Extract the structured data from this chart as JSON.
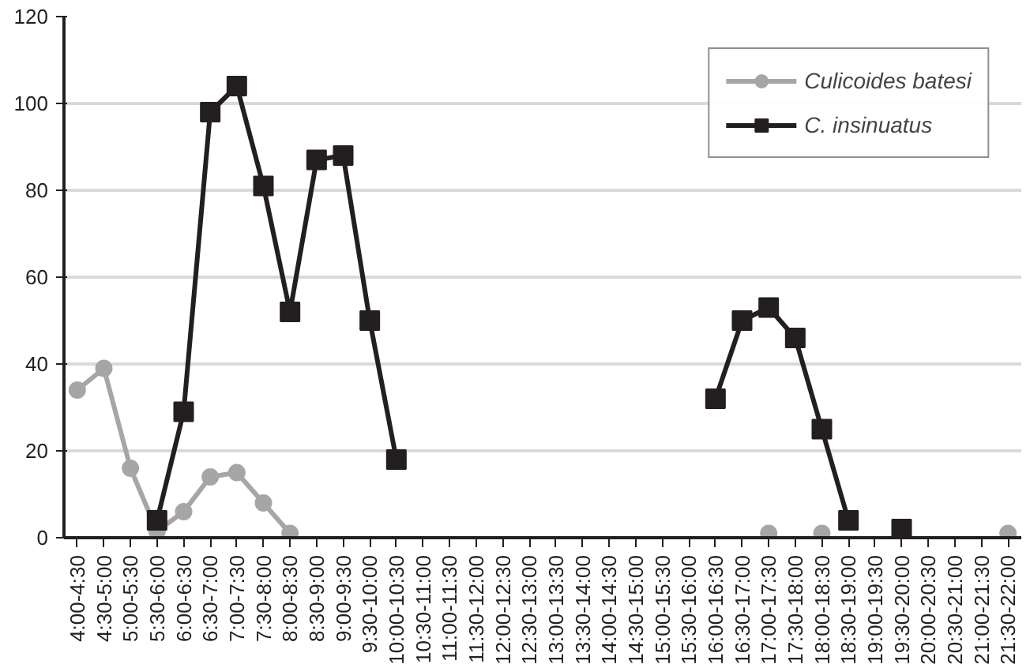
{
  "chart_data": {
    "type": "line",
    "categories": [
      "4:00-4:30",
      "4:30-5:00",
      "5:00-5:30",
      "5:30-6:00",
      "6:00-6:30",
      "6:30-7:00",
      "7:00-7:30",
      "7:30-8:00",
      "8:00-8:30",
      "8:30-9:00",
      "9:00-9:30",
      "9:30-10:00",
      "10:00-10:30",
      "10:30-11:00",
      "11:00-11:30",
      "11:30-12:00",
      "12:00-12:30",
      "12:30-13:00",
      "13:00-13:30",
      "13:30-14:00",
      "14:00-14:30",
      "14:30-15:00",
      "15:00-15:30",
      "15:30-16:00",
      "16:00-16:30",
      "16:30-17:00",
      "17:00-17:30",
      "17:30-18:00",
      "18:00-18:30",
      "18:30-19:00",
      "19:00-19:30",
      "19:30-20:00",
      "20:00-20:30",
      "20:30-21:00",
      "21:00-21:30",
      "21:30-22:00"
    ],
    "series": [
      {
        "name": "Culicoides batesi",
        "color": "#a6a6a6",
        "marker": "circle",
        "values": [
          34,
          39,
          16,
          1.5,
          6,
          14,
          15,
          8,
          1,
          null,
          null,
          null,
          null,
          null,
          null,
          null,
          null,
          null,
          null,
          null,
          null,
          null,
          null,
          null,
          null,
          null,
          1,
          null,
          1,
          null,
          null,
          null,
          null,
          null,
          null,
          1
        ]
      },
      {
        "name": "C. insinuatus",
        "color": "#231f20",
        "marker": "square",
        "values": [
          null,
          null,
          null,
          4,
          29,
          98,
          104,
          81,
          52,
          87,
          88,
          50,
          18,
          null,
          null,
          null,
          null,
          null,
          null,
          null,
          null,
          null,
          null,
          null,
          32,
          50,
          53,
          46,
          25,
          4,
          null,
          2,
          null,
          null,
          null,
          null
        ]
      }
    ],
    "ylim": [
      0,
      120
    ],
    "yticks": [
      0,
      20,
      40,
      60,
      80,
      100,
      120
    ],
    "grid": "y",
    "legend": "top right"
  }
}
